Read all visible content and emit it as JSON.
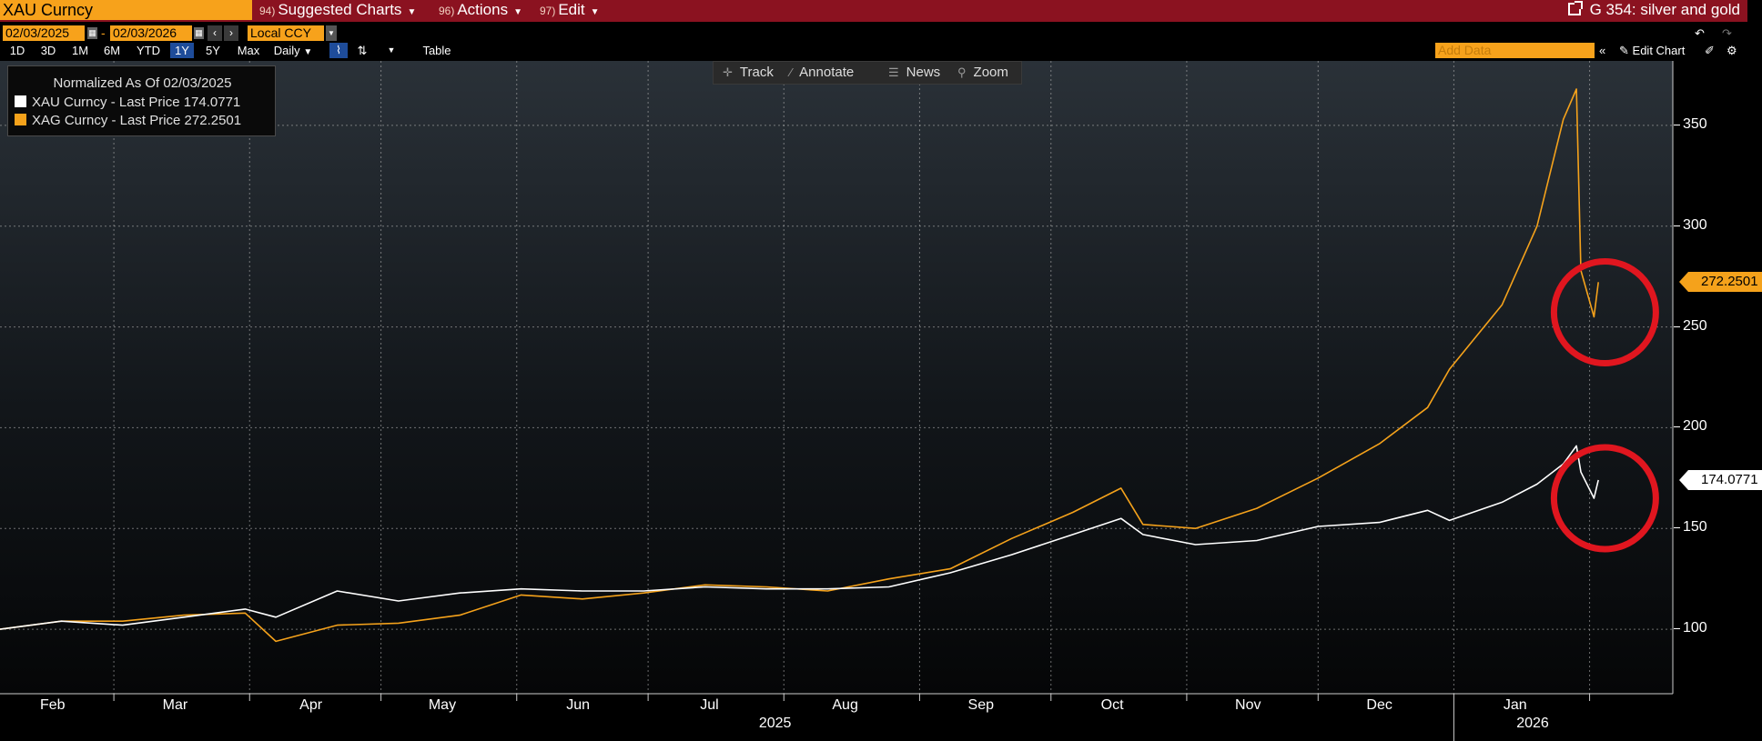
{
  "topbar": {
    "security": "XAU Curncy",
    "menus": [
      {
        "num": "94)",
        "label": "Suggested Charts"
      },
      {
        "num": "96)",
        "label": "Actions"
      },
      {
        "num": "97)",
        "label": "Edit"
      }
    ],
    "title": "G 354: silver and gold"
  },
  "dates": {
    "start": "02/03/2025",
    "end": "02/03/2026",
    "currency": "Local CCY"
  },
  "periods": [
    "1D",
    "3D",
    "1M",
    "6M",
    "YTD",
    "1Y",
    "5Y",
    "Max"
  ],
  "active_period": "1Y",
  "frequency": "Daily",
  "table_label": "Table",
  "add_data_placeholder": "Add Data",
  "edit_chart_label": "Edit Chart",
  "tools": [
    "Track",
    "Annotate",
    "News",
    "Zoom"
  ],
  "legend": {
    "title": "Normalized As Of 02/03/2025",
    "rows": [
      {
        "label": "XAU Curncy - Last Price 174.0771",
        "color": "#ffffff"
      },
      {
        "label": "XAG Curncy - Last Price 272.2501",
        "color": "#f5a21b"
      }
    ]
  },
  "end_labels": {
    "xag": "272.2501",
    "xau": "174.0771"
  },
  "chart_data": {
    "type": "line",
    "title": "",
    "x": [
      "2025-02-03",
      "2025-02-17",
      "2025-03-03",
      "2025-03-17",
      "2025-03-31",
      "2025-04-07",
      "2025-04-21",
      "2025-05-05",
      "2025-05-19",
      "2025-06-02",
      "2025-06-16",
      "2025-06-30",
      "2025-07-14",
      "2025-07-28",
      "2025-08-11",
      "2025-08-25",
      "2025-09-08",
      "2025-09-22",
      "2025-10-06",
      "2025-10-17",
      "2025-10-22",
      "2025-11-03",
      "2025-11-17",
      "2025-12-01",
      "2025-12-15",
      "2025-12-26",
      "2025-12-31",
      "2026-01-12",
      "2026-01-20",
      "2026-01-26",
      "2026-01-29",
      "2026-01-30",
      "2026-02-02",
      "2026-02-03"
    ],
    "series": [
      {
        "name": "XAU Curncy",
        "color": "#ffffff",
        "values": [
          100,
          104,
          102,
          106,
          110,
          106,
          119,
          114,
          118,
          120,
          119,
          119,
          121,
          120,
          120,
          121,
          128,
          137,
          147,
          155,
          147,
          142,
          144,
          151,
          153,
          159,
          154,
          163,
          172,
          182,
          191,
          178,
          165,
          174.08
        ]
      },
      {
        "name": "XAG Curncy",
        "color": "#f5a21b",
        "values": [
          100,
          104,
          104,
          107,
          108,
          94,
          102,
          103,
          107,
          117,
          115,
          118,
          122,
          121,
          119,
          125,
          130,
          145,
          158,
          170,
          152,
          150,
          160,
          175,
          192,
          210,
          229,
          261,
          300,
          353,
          368,
          278,
          255,
          272.25
        ]
      }
    ],
    "xlabel": "",
    "ylabel": "",
    "ylim": [
      68,
      382
    ],
    "y_ticks": [
      100,
      150,
      200,
      250,
      300,
      350
    ],
    "x_ticks": [
      "Feb",
      "Mar",
      "Apr",
      "May",
      "Jun",
      "Jul",
      "Aug",
      "Sep",
      "Oct",
      "Nov",
      "Dec",
      "Jan"
    ],
    "x_tick_dates": [
      "2025-02-15",
      "2025-03-15",
      "2025-04-15",
      "2025-05-15",
      "2025-06-15",
      "2025-07-15",
      "2025-08-15",
      "2025-09-15",
      "2025-10-15",
      "2025-11-15",
      "2025-12-15",
      "2026-01-15"
    ],
    "x_years": [
      {
        "label": "2025",
        "at": "2025-07-30"
      },
      {
        "label": "2026",
        "at": "2026-01-19"
      }
    ],
    "grid": true,
    "legend": "top-left",
    "annotations": [
      {
        "type": "circle",
        "at": "2026-02-02",
        "series": "XAG Curncy",
        "color": "#e0161f"
      },
      {
        "type": "circle",
        "at": "2026-02-02",
        "series": "XAU Curncy",
        "color": "#e0161f"
      }
    ]
  }
}
